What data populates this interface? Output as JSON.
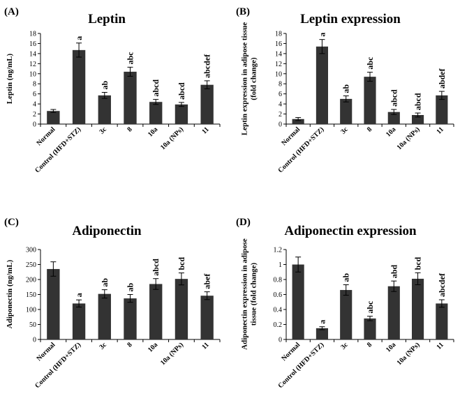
{
  "chart_data": [
    {
      "panel": "(A)",
      "type": "bar",
      "title": "Leptin",
      "ylabel_lines": [
        "Leptin (ng/mL)"
      ],
      "categories": [
        "Normal",
        "Control (HFD+STZ)",
        "3c",
        "8",
        "10a",
        "10a (NPs)",
        "11"
      ],
      "values": [
        2.6,
        14.7,
        5.7,
        10.4,
        4.4,
        3.9,
        7.8
      ],
      "errors": [
        0.3,
        1.4,
        0.6,
        0.9,
        0.5,
        0.4,
        0.8
      ],
      "significance": [
        "",
        "a",
        "ab",
        "abc",
        "abcd",
        "abcd",
        "abcdef"
      ],
      "ylim": [
        0,
        18
      ],
      "yticks": [
        0,
        2,
        4,
        6,
        8,
        10,
        12,
        14,
        16,
        18
      ],
      "color": "#333333"
    },
    {
      "panel": "(B)",
      "type": "bar",
      "title": "Leptin expression",
      "ylabel_lines": [
        "Leptin expression in adipose tissue",
        "(fold change)"
      ],
      "categories": [
        "Normal",
        "Control (HFD+STZ)",
        "3c",
        "8",
        "10a",
        "10a (NPs)",
        "11"
      ],
      "values": [
        1.0,
        15.4,
        5.0,
        9.4,
        2.4,
        1.8,
        5.7
      ],
      "errors": [
        0.3,
        1.4,
        0.6,
        0.9,
        0.5,
        0.4,
        0.8
      ],
      "significance": [
        "",
        "a",
        "ab",
        "abc",
        "abcd",
        "abcd",
        "abdef"
      ],
      "ylim": [
        0,
        18
      ],
      "yticks": [
        0,
        2,
        4,
        6,
        8,
        10,
        12,
        14,
        16,
        18
      ],
      "color": "#333333"
    },
    {
      "panel": "(C)",
      "type": "bar",
      "title": "Adiponectin",
      "ylabel_lines": [
        "Adiponectin (ng/mL)"
      ],
      "categories": [
        "Normal",
        "Control (HFD+STZ)",
        "3c",
        "8",
        "10a",
        "10a (NPs)",
        "11"
      ],
      "values": [
        235,
        120,
        152,
        137,
        185,
        202,
        146
      ],
      "errors": [
        24,
        12,
        14,
        13,
        18,
        20,
        13
      ],
      "significance": [
        "",
        "a",
        "ab",
        "ab",
        "abcd",
        "bcd",
        "abef"
      ],
      "ylim": [
        0,
        300
      ],
      "yticks": [
        0,
        50,
        100,
        150,
        200,
        250,
        300
      ],
      "color": "#333333"
    },
    {
      "panel": "(D)",
      "type": "bar",
      "title": "Adiponectin expression",
      "ylabel_lines": [
        "Adiponectin expression in adipose",
        "tissue (fold change)"
      ],
      "categories": [
        "Normal",
        "Control (HFD+STZ)",
        "3c",
        "8",
        "10a",
        "10a (NPs)",
        "11"
      ],
      "values": [
        1.0,
        0.15,
        0.66,
        0.28,
        0.71,
        0.81,
        0.48
      ],
      "errors": [
        0.1,
        0.02,
        0.07,
        0.03,
        0.07,
        0.08,
        0.05
      ],
      "significance": [
        "",
        "a",
        "ab",
        "abc",
        "abd",
        "bcd",
        "abcdef"
      ],
      "ylim": [
        0,
        1.2
      ],
      "yticks": [
        "0",
        "0.2",
        "0.4",
        "0.6",
        "0.8",
        "1",
        "1.2"
      ],
      "color": "#333333"
    }
  ]
}
